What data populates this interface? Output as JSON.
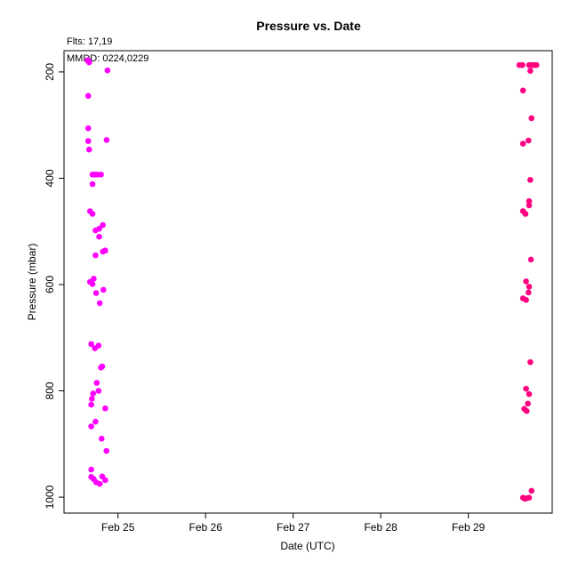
{
  "chart_data": {
    "type": "scatter",
    "title": "Pressure  vs. Date",
    "xlabel": "Date (UTC)",
    "ylabel": "Pressure (mbar)",
    "annotations": [
      "Flts: 17,19",
      "MMDD: 0224,0229"
    ],
    "xlim": [
      "2024-02-24 09:12",
      "2024-02-29 23:00"
    ],
    "ylim": [
      1030,
      160
    ],
    "y_reversed": true,
    "xticks": [
      {
        "label": "Feb 25",
        "value": "2024-02-25 00:00"
      },
      {
        "label": "Feb 26",
        "value": "2024-02-26 00:00"
      },
      {
        "label": "Feb 27",
        "value": "2024-02-27 00:00"
      },
      {
        "label": "Feb 28",
        "value": "2024-02-28 00:00"
      },
      {
        "label": "Feb 29",
        "value": "2024-02-29 00:00"
      }
    ],
    "yticks": [
      200,
      400,
      600,
      800,
      1000
    ],
    "grid": false,
    "series": [
      {
        "color": "#ff00ff",
        "points": [
          {
            "x": "2024-02-24 15:36",
            "y": 178
          },
          {
            "x": "2024-02-24 15:50",
            "y": 178
          },
          {
            "x": "2024-02-24 16:05",
            "y": 182
          },
          {
            "x": "2024-02-24 21:07",
            "y": 197
          },
          {
            "x": "2024-02-24 15:50",
            "y": 245
          },
          {
            "x": "2024-02-24 15:50",
            "y": 306
          },
          {
            "x": "2024-02-24 15:50",
            "y": 330
          },
          {
            "x": "2024-02-24 16:05",
            "y": 346
          },
          {
            "x": "2024-02-24 20:52",
            "y": 328
          },
          {
            "x": "2024-02-24 17:00",
            "y": 393
          },
          {
            "x": "2024-02-24 17:40",
            "y": 393
          },
          {
            "x": "2024-02-24 18:20",
            "y": 393
          },
          {
            "x": "2024-02-24 19:20",
            "y": 393
          },
          {
            "x": "2024-02-24 17:00",
            "y": 411
          },
          {
            "x": "2024-02-24 16:20",
            "y": 462
          },
          {
            "x": "2024-02-24 17:00",
            "y": 467
          },
          {
            "x": "2024-02-24 17:50",
            "y": 498
          },
          {
            "x": "2024-02-24 18:50",
            "y": 495
          },
          {
            "x": "2024-02-24 19:50",
            "y": 488
          },
          {
            "x": "2024-02-24 18:50",
            "y": 510
          },
          {
            "x": "2024-02-24 19:50",
            "y": 538
          },
          {
            "x": "2024-02-24 20:30",
            "y": 536
          },
          {
            "x": "2024-02-24 17:50",
            "y": 545
          },
          {
            "x": "2024-02-24 16:20",
            "y": 595
          },
          {
            "x": "2024-02-24 17:00",
            "y": 599
          },
          {
            "x": "2024-02-24 17:20",
            "y": 589
          },
          {
            "x": "2024-02-24 20:00",
            "y": 610
          },
          {
            "x": "2024-02-24 18:00",
            "y": 616
          },
          {
            "x": "2024-02-24 19:00",
            "y": 635
          },
          {
            "x": "2024-02-24 16:40",
            "y": 712
          },
          {
            "x": "2024-02-24 17:40",
            "y": 720
          },
          {
            "x": "2024-02-24 18:40",
            "y": 715
          },
          {
            "x": "2024-02-24 19:20",
            "y": 756
          },
          {
            "x": "2024-02-24 19:40",
            "y": 754
          },
          {
            "x": "2024-02-24 18:10",
            "y": 785
          },
          {
            "x": "2024-02-24 18:40",
            "y": 800
          },
          {
            "x": "2024-02-24 17:10",
            "y": 805
          },
          {
            "x": "2024-02-24 16:50",
            "y": 815
          },
          {
            "x": "2024-02-24 16:40",
            "y": 826
          },
          {
            "x": "2024-02-24 20:30",
            "y": 833
          },
          {
            "x": "2024-02-24 17:50",
            "y": 858
          },
          {
            "x": "2024-02-24 16:40",
            "y": 867
          },
          {
            "x": "2024-02-24 19:30",
            "y": 890
          },
          {
            "x": "2024-02-24 20:50",
            "y": 913
          },
          {
            "x": "2024-02-24 16:40",
            "y": 948
          },
          {
            "x": "2024-02-24 16:40",
            "y": 962
          },
          {
            "x": "2024-02-24 17:20",
            "y": 966
          },
          {
            "x": "2024-02-24 18:00",
            "y": 972
          },
          {
            "x": "2024-02-24 19:00",
            "y": 975
          },
          {
            "x": "2024-02-24 19:40",
            "y": 961
          },
          {
            "x": "2024-02-24 20:30",
            "y": 968
          }
        ]
      },
      {
        "color": "#ff0080",
        "points": [
          {
            "x": "2024-02-29 14:00",
            "y": 187
          },
          {
            "x": "2024-02-29 14:50",
            "y": 187
          },
          {
            "x": "2024-02-29 16:40",
            "y": 187
          },
          {
            "x": "2024-02-29 17:30",
            "y": 187
          },
          {
            "x": "2024-02-29 18:10",
            "y": 187
          },
          {
            "x": "2024-02-29 18:40",
            "y": 187
          },
          {
            "x": "2024-02-29 17:00",
            "y": 198
          },
          {
            "x": "2024-02-29 15:00",
            "y": 235
          },
          {
            "x": "2024-02-29 17:20",
            "y": 287
          },
          {
            "x": "2024-02-29 15:00",
            "y": 335
          },
          {
            "x": "2024-02-29 16:30",
            "y": 329
          },
          {
            "x": "2024-02-29 17:00",
            "y": 403
          },
          {
            "x": "2024-02-29 16:40",
            "y": 443
          },
          {
            "x": "2024-02-29 16:40",
            "y": 451
          },
          {
            "x": "2024-02-29 15:00",
            "y": 462
          },
          {
            "x": "2024-02-29 15:40",
            "y": 467
          },
          {
            "x": "2024-02-29 17:10",
            "y": 553
          },
          {
            "x": "2024-02-29 15:50",
            "y": 594
          },
          {
            "x": "2024-02-29 16:40",
            "y": 604
          },
          {
            "x": "2024-02-29 16:30",
            "y": 615
          },
          {
            "x": "2024-02-29 15:00",
            "y": 626
          },
          {
            "x": "2024-02-29 15:50",
            "y": 629
          },
          {
            "x": "2024-02-29 17:00",
            "y": 746
          },
          {
            "x": "2024-02-29 15:50",
            "y": 796
          },
          {
            "x": "2024-02-29 16:40",
            "y": 806
          },
          {
            "x": "2024-02-29 16:20",
            "y": 824
          },
          {
            "x": "2024-02-29 15:20",
            "y": 834
          },
          {
            "x": "2024-02-29 16:00",
            "y": 838
          },
          {
            "x": "2024-02-29 17:20",
            "y": 988
          },
          {
            "x": "2024-02-29 15:00",
            "y": 1001
          },
          {
            "x": "2024-02-29 15:30",
            "y": 1003
          },
          {
            "x": "2024-02-29 16:00",
            "y": 1002
          },
          {
            "x": "2024-02-29 16:40",
            "y": 1001
          }
        ]
      }
    ]
  }
}
